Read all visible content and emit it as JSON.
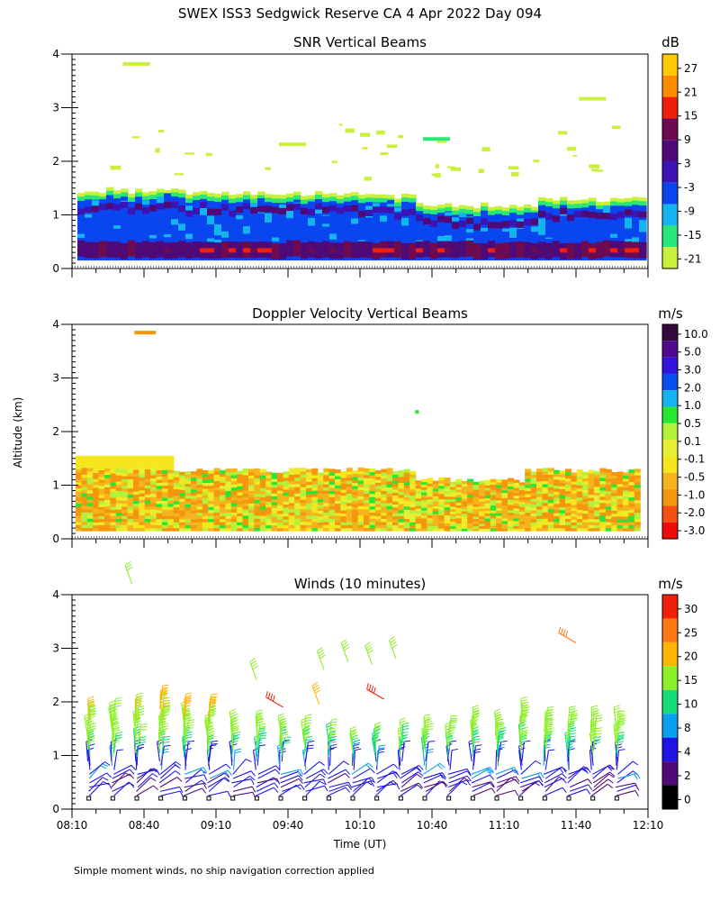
{
  "figure_title": "SWEX ISS3 Sedgwick Reserve CA    4 Apr 2022 Day 094",
  "footer_note": "Simple moment winds, no ship navigation correction applied",
  "y_axis_label": "Altitude (km)",
  "x_axis_label": "Time (UT)",
  "colors": {
    "snr_scale": [
      "#c8f03c",
      "#28e678",
      "#14b4f0",
      "#0a46f0",
      "#3c14b4",
      "#500a78",
      "#6e0a50",
      "#f01e0a",
      "#ff8c00",
      "#ffc800"
    ],
    "doppler_scale": [
      "#f00a0a",
      "#f55014",
      "#f5960f",
      "#f5b41e",
      "#f5e61e",
      "#e6f032",
      "#b4f03c",
      "#28e632",
      "#14b4f0",
      "#0a50f0",
      "#3214dc",
      "#500a8c",
      "#320a3c"
    ],
    "wind_scale": [
      "#000000",
      "#500a78",
      "#1e14e6",
      "#0aa0f0",
      "#14dc78",
      "#8cf028",
      "#ffb400",
      "#ff7814",
      "#f01e0a"
    ]
  },
  "chart_data": [
    {
      "type": "heatmap",
      "title": "SNR Vertical Beams",
      "colorbar_unit": "dB",
      "colorbar_ticks": [
        "27",
        "21",
        "15",
        "9",
        "3",
        "-3",
        "-9",
        "-15",
        "-21"
      ],
      "x_ticks": [
        "08:10",
        "08:40",
        "09:10",
        "09:40",
        "10:10",
        "10:40",
        "11:10",
        "11:40",
        "12:10"
      ],
      "xlim_minutes_after_0810": [
        0,
        240
      ],
      "y_ticks": [
        "0",
        "1",
        "2",
        "3",
        "4"
      ],
      "ylim_km": [
        0,
        4
      ],
      "bands": [
        {
          "top_km": 1.5,
          "bottom_km": 1.25,
          "value_db": -15
        },
        {
          "top_km": 1.3,
          "bottom_km": 0.15,
          "value_db": -3
        },
        {
          "top_km": 1.1,
          "bottom_km": 0.95,
          "value_db": 6
        },
        {
          "top_km": 0.55,
          "bottom_km": 0.25,
          "value_db": 9
        }
      ],
      "isolated_echoes": [
        {
          "t_min": 90,
          "alt_km": 2.35,
          "value_db": -21
        },
        {
          "t_min": 150,
          "alt_km": 2.45,
          "value_db": -15
        },
        {
          "t_min": 215,
          "alt_km": 3.2,
          "value_db": -21
        },
        {
          "t_min": 25,
          "alt_km": 3.85,
          "value_db": -21
        }
      ]
    },
    {
      "type": "heatmap",
      "title": "Doppler Velocity Vertical Beams",
      "colorbar_unit": "m/s",
      "colorbar_ticks": [
        "10.0",
        "5.0",
        "3.0",
        "2.0",
        "1.0",
        "0.5",
        "0.1",
        "-0.1",
        "-0.5",
        "-1.0",
        "-2.0",
        "-3.0"
      ],
      "x_ticks": [
        "08:10",
        "08:40",
        "09:10",
        "09:40",
        "10:10",
        "10:40",
        "11:10",
        "11:40",
        "12:10"
      ],
      "y_ticks": [
        "0",
        "1",
        "2",
        "3",
        "4"
      ],
      "ylim_km": [
        0,
        4
      ],
      "bands": [
        {
          "top_km": 1.55,
          "bottom_km": 1.3,
          "value_ms": -0.5
        },
        {
          "top_km": 1.3,
          "bottom_km": 0.15,
          "value_ms": -0.4
        }
      ]
    },
    {
      "type": "scatter",
      "title": "Winds (10 minutes)",
      "colorbar_unit": "m/s",
      "colorbar_ticks": [
        "30",
        "25",
        "20",
        "15",
        "10",
        "8",
        "4",
        "2",
        "0"
      ],
      "x_ticks": [
        "08:10",
        "08:40",
        "09:10",
        "09:40",
        "10:10",
        "10:40",
        "11:10",
        "11:40",
        "12:10"
      ],
      "y_ticks": [
        "0",
        "1",
        "2",
        "3",
        "4"
      ],
      "ylim_km": [
        0,
        4
      ],
      "profiles_minutes_after_0810": [
        10,
        20,
        30,
        40,
        50,
        60,
        70,
        80,
        90,
        100,
        110,
        120,
        130,
        140,
        150,
        160,
        170,
        180,
        190,
        200,
        210,
        220,
        230
      ],
      "profile_top_km": [
        1.75,
        1.7,
        1.8,
        1.95,
        1.8,
        1.85,
        1.5,
        1.5,
        1.45,
        1.4,
        1.3,
        1.2,
        1.25,
        1.3,
        1.4,
        1.4,
        1.55,
        1.5,
        1.7,
        1.6,
        1.55,
        1.6,
        1.55
      ],
      "upper_barbs": [
        {
          "t_min": 25,
          "alt_km": 4.2,
          "speed_ms": 16
        },
        {
          "t_min": 77,
          "alt_km": 2.4,
          "speed_ms": 19
        },
        {
          "t_min": 88,
          "alt_km": 1.9,
          "speed_ms": 32
        },
        {
          "t_min": 105,
          "alt_km": 2.6,
          "speed_ms": 19
        },
        {
          "t_min": 115,
          "alt_km": 2.75,
          "speed_ms": 19
        },
        {
          "t_min": 125,
          "alt_km": 2.7,
          "speed_ms": 19
        },
        {
          "t_min": 135,
          "alt_km": 2.8,
          "speed_ms": 18
        },
        {
          "t_min": 130,
          "alt_km": 2.05,
          "speed_ms": 32
        },
        {
          "t_min": 103,
          "alt_km": 1.95,
          "speed_ms": 23
        },
        {
          "t_min": 210,
          "alt_km": 3.1,
          "speed_ms": 27
        }
      ]
    }
  ]
}
